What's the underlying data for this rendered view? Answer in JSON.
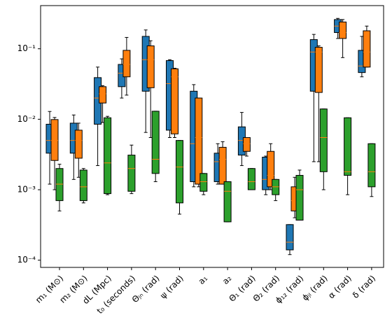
{
  "chart_data": {
    "type": "box",
    "log_y": true,
    "ylim": [
      7.9e-05,
      0.41
    ],
    "yticks": [
      {
        "value": 0.0001,
        "label": "10⁻⁴"
      },
      {
        "value": 0.001,
        "label": "10⁻³"
      },
      {
        "value": 0.01,
        "label": "10⁻²"
      },
      {
        "value": 0.1,
        "label": "10⁻¹"
      }
    ],
    "median_color": "#ff7f0e",
    "categories": [
      "m₁ (M⊙)",
      "m₂ (M⊙)",
      "dL (Mpc)",
      "t₀ (seconds)",
      "Θⱼₙ (rad)",
      "ψ (rad)",
      "a₁",
      "a₂",
      "Θ₁ (rad)",
      "Θ₂ (rad)",
      "ϕ₁₂ (rad)",
      "ϕⱼₗ (rad)",
      "α (rad)",
      "δ (rad)"
    ],
    "series": [
      {
        "color": "#1f77b4",
        "low": [
          0.0012,
          0.0014,
          0.0022,
          0.02,
          0.0065,
          0.0055,
          0.0011,
          0.0012,
          0.0022,
          0.00085,
          0.00012,
          0.0025,
          0.14,
          0.04
        ],
        "q1": [
          0.0033,
          0.0033,
          0.0085,
          0.029,
          0.025,
          0.007,
          0.0013,
          0.0013,
          0.0031,
          0.001,
          0.00014,
          0.025,
          0.17,
          0.046
        ],
        "median": [
          0.005,
          0.005,
          0.02,
          0.045,
          0.07,
          0.032,
          0.0045,
          0.0025,
          0.005,
          0.0014,
          0.00018,
          0.09,
          0.21,
          0.057
        ],
        "q3": [
          0.0085,
          0.0088,
          0.039,
          0.06,
          0.15,
          0.068,
          0.025,
          0.0033,
          0.0078,
          0.0029,
          0.00032,
          0.135,
          0.26,
          0.095
        ],
        "high": [
          0.0129,
          0.0115,
          0.055,
          0.072,
          0.185,
          0.07,
          0.031,
          0.0045,
          0.0125,
          0.003,
          0.00032,
          0.16,
          0.27,
          0.15
        ]
      },
      {
        "color": "#ff7f0e",
        "low": [
          0.001,
          0.0015,
          0.009,
          0.022,
          0.0055,
          0.0055,
          0.0011,
          0.0012,
          0.003,
          0.001,
          0.0004,
          0.0025,
          0.075,
          0.055
        ],
        "q1": [
          0.0026,
          0.0028,
          0.017,
          0.04,
          0.028,
          0.0062,
          0.0012,
          0.0012,
          0.0035,
          0.0011,
          0.0005,
          0.024,
          0.14,
          0.055
        ],
        "median": [
          0.005,
          0.005,
          0.023,
          0.06,
          0.07,
          0.04,
          0.0055,
          0.0027,
          0.0045,
          0.0016,
          0.0007,
          0.09,
          0.17,
          0.09
        ],
        "q3": [
          0.0099,
          0.007,
          0.029,
          0.095,
          0.11,
          0.052,
          0.02,
          0.004,
          0.0055,
          0.0035,
          0.0011,
          0.105,
          0.24,
          0.18
        ],
        "high": [
          0.0106,
          0.0088,
          0.03,
          0.145,
          0.13,
          0.053,
          0.02,
          0.0048,
          0.0055,
          0.0045,
          0.0015,
          0.11,
          0.26,
          0.21
        ]
      },
      {
        "color": "#2ca02c",
        "low": [
          0.0005,
          0.00065,
          0.00085,
          0.00088,
          0.0013,
          0.00045,
          0.00085,
          0.00035,
          0.001,
          0.0007,
          0.00037,
          0.001,
          0.00085,
          0.0008
        ],
        "q1": [
          0.0007,
          0.0007,
          0.00088,
          0.00095,
          0.0017,
          0.00065,
          0.00095,
          0.00035,
          0.001,
          0.00085,
          0.00037,
          0.0018,
          0.0016,
          0.0011
        ],
        "median": [
          0.0012,
          0.0011,
          0.0024,
          0.002,
          0.0027,
          0.0021,
          0.0013,
          0.00095,
          0.0013,
          0.0011,
          0.001,
          0.0055,
          0.0018,
          0.0018
        ],
        "q3": [
          0.002,
          0.0019,
          0.0105,
          0.0031,
          0.013,
          0.005,
          0.0017,
          0.0013,
          0.002,
          0.0014,
          0.0016,
          0.014,
          0.0105,
          0.0045
        ],
        "high": [
          0.0023,
          0.002,
          0.011,
          0.0043,
          0.013,
          0.005,
          0.0017,
          0.0013,
          0.002,
          0.0014,
          0.0019,
          0.014,
          0.0105,
          0.0045
        ]
      }
    ]
  }
}
